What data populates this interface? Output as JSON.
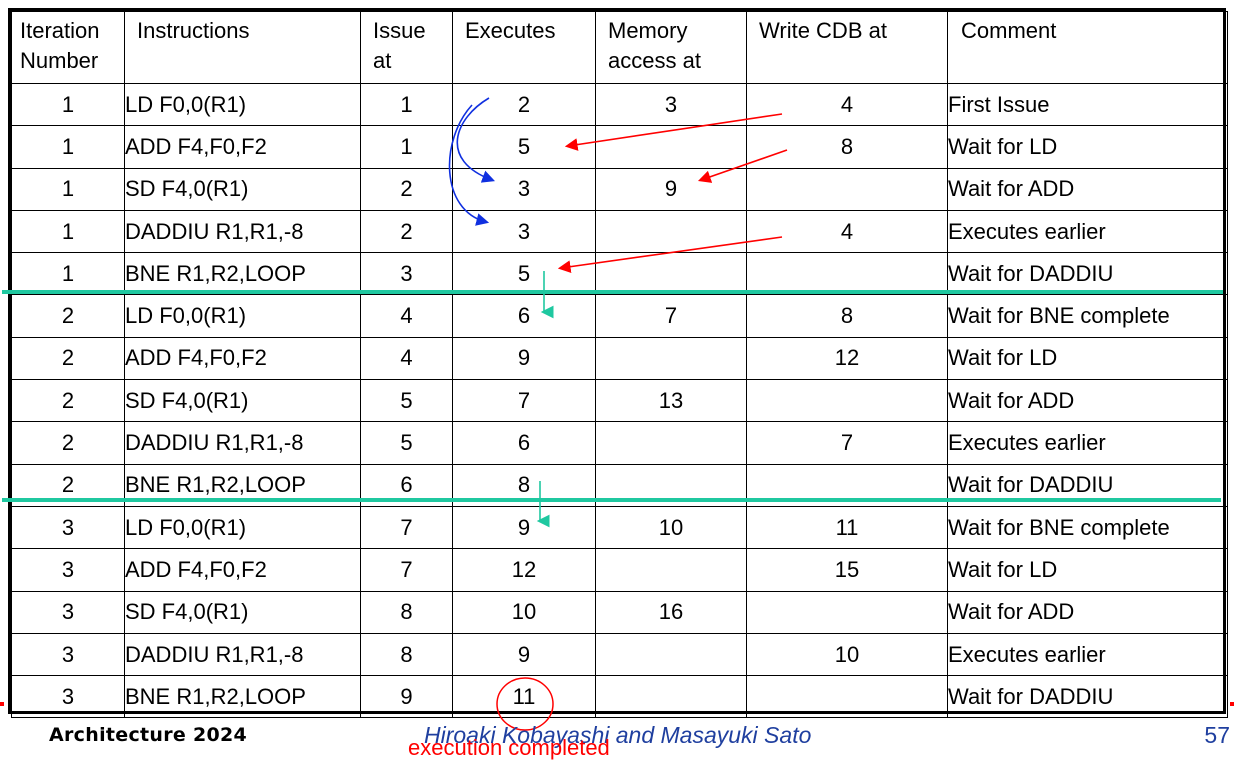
{
  "table": {
    "headers": {
      "iteration": "Iteration Number",
      "instructions": "Instructions",
      "issue": "Issue at",
      "executes": "Executes",
      "memory": "Memory access at",
      "write": "Write CDB at",
      "comment": "Comment"
    },
    "rows": [
      {
        "iteration": "1",
        "instruction": "LD F0,0(R1)",
        "issue": "1",
        "executes": "2",
        "memory": "3",
        "write": "4",
        "comment": "First Issue",
        "highlight": false
      },
      {
        "iteration": "1",
        "instruction": "ADD F4,F0,F2",
        "issue": "1",
        "executes": "5",
        "memory": "",
        "write": "8",
        "comment": "Wait for LD",
        "highlight": false
      },
      {
        "iteration": "1",
        "instruction": "SD F4,0(R1)",
        "issue": "2",
        "executes": "3",
        "memory": "9",
        "write": "",
        "comment": "Wait for ADD",
        "highlight": false
      },
      {
        "iteration": "1",
        "instruction": "DADDIU R1,R1,-8",
        "issue": "2",
        "executes": "3",
        "memory": "",
        "write": "4",
        "comment": "Executes earlier",
        "highlight": true
      },
      {
        "iteration": "1",
        "instruction": "BNE R1,R2,LOOP",
        "issue": "3",
        "executes": "5",
        "memory": "",
        "write": "",
        "comment": "Wait for DADDIU",
        "highlight": false
      },
      {
        "iteration": "2",
        "instruction": "LD F0,0(R1)",
        "issue": "4",
        "executes": "6",
        "memory": "7",
        "write": "8",
        "comment": "Wait for BNE complete",
        "highlight": false
      },
      {
        "iteration": "2",
        "instruction": "ADD F4,F0,F2",
        "issue": "4",
        "executes": "9",
        "memory": "",
        "write": "12",
        "comment": "Wait for LD",
        "highlight": false
      },
      {
        "iteration": "2",
        "instruction": "SD F4,0(R1)",
        "issue": "5",
        "executes": "7",
        "memory": "13",
        "write": "",
        "comment": "Wait for ADD",
        "highlight": false
      },
      {
        "iteration": "2",
        "instruction": "DADDIU R1,R1,-8",
        "issue": "5",
        "executes": "6",
        "memory": "",
        "write": "7",
        "comment": "Executes earlier",
        "highlight": true
      },
      {
        "iteration": "2",
        "instruction": "BNE R1,R2,LOOP",
        "issue": "6",
        "executes": "8",
        "memory": "",
        "write": "",
        "comment": "Wait for DADDIU",
        "highlight": false
      },
      {
        "iteration": "3",
        "instruction": "LD F0,0(R1)",
        "issue": "7",
        "executes": "9",
        "memory": "10",
        "write": "11",
        "comment": "Wait for BNE complete",
        "highlight": false
      },
      {
        "iteration": "3",
        "instruction": "ADD F4,F0,F2",
        "issue": "7",
        "executes": "12",
        "memory": "",
        "write": "15",
        "comment": "Wait for LD",
        "highlight": false
      },
      {
        "iteration": "3",
        "instruction": "SD F4,0(R1)",
        "issue": "8",
        "executes": "10",
        "memory": "16",
        "write": "",
        "comment": "Wait for ADD",
        "highlight": false
      },
      {
        "iteration": "3",
        "instruction": "DADDIU R1,R1,-8",
        "issue": "8",
        "executes": "9",
        "memory": "",
        "write": "10",
        "comment": "Executes earlier",
        "highlight": true
      },
      {
        "iteration": "3",
        "instruction": "BNE R1,R2,LOOP",
        "issue": "9",
        "executes": "11",
        "memory": "",
        "write": "",
        "comment": "Wait for DADDIU",
        "highlight": false
      }
    ]
  },
  "footer": {
    "course": "Architecture 2024",
    "authors": "Hiroaki Kobayashi and Masayuki Sato",
    "page": "57"
  },
  "annotation": {
    "note": "execution completed"
  },
  "colors": {
    "highlight_text": "#ff0000",
    "iteration_separator": "#1fc8a0",
    "dependency_arrow_blue": "#1030e0",
    "dependency_arrow_red": "#ff0000",
    "footer_text": "#1f3f9f"
  }
}
